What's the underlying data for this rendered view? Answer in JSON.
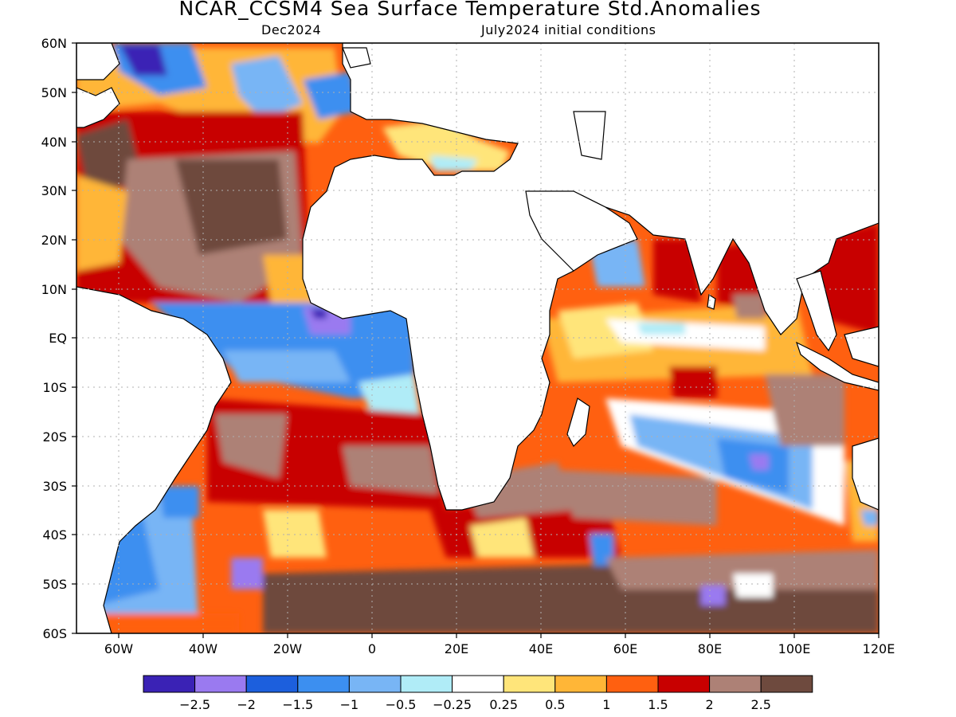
{
  "title": "NCAR_CCSM4 Sea Surface Temperature Std.Anomalies",
  "subtitle_left": "Dec2024",
  "subtitle_right": "July2024 initial conditions",
  "map": {
    "lat_labels": [
      "60N",
      "50N",
      "40N",
      "30N",
      "20N",
      "10N",
      "EQ",
      "10S",
      "20S",
      "30S",
      "40S",
      "50S",
      "60S"
    ],
    "lon_labels": [
      "60W",
      "40W",
      "20W",
      "0",
      "20E",
      "40E",
      "60E",
      "80E",
      "100E",
      "120E"
    ],
    "lon_range": [
      -70,
      120
    ],
    "lat_range": [
      -60,
      60
    ]
  },
  "colorbar": {
    "colors": [
      "#3a22b5",
      "#9a7af0",
      "#1c5fdd",
      "#3c8ff0",
      "#78b5f5",
      "#b0ecf7",
      "#ffffff",
      "#ffe57a",
      "#ffb637",
      "#ff6010",
      "#c80000",
      "#ad8176",
      "#6e4a3e"
    ],
    "labels": [
      "-2.5",
      "-2",
      "-1.5",
      "-1",
      "-0.5",
      "-0.25",
      "0.25",
      "0.5",
      "1",
      "1.5",
      "2",
      "2.5"
    ]
  }
}
